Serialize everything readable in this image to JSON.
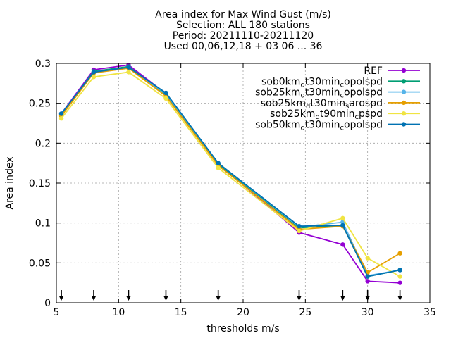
{
  "chart_data": {
    "type": "line",
    "title_lines": [
      "Area index  for Max Wind Gust (m/s)",
      "Selection: ALL     180 stations",
      "Period: 20211110-20211120",
      "Used 00,06,12,18 + 03 06 ... 36"
    ],
    "xlabel": "thresholds m/s",
    "ylabel": "Area index",
    "xlim": [
      5,
      35
    ],
    "ylim": [
      0,
      0.3
    ],
    "xticks": [
      5,
      10,
      15,
      20,
      25,
      30,
      35
    ],
    "xtick_labels": [
      "5",
      "10",
      "15",
      "20",
      "25",
      "30",
      "35"
    ],
    "yticks": [
      0,
      0.05,
      0.1,
      0.15,
      0.2,
      0.25,
      0.3
    ],
    "ytick_labels": [
      "0",
      "0.05",
      "0.1",
      "0.15",
      "0.2",
      "0.25",
      "0.3"
    ],
    "grid": true,
    "legend_position": "top-right",
    "x": [
      5.4,
      8.0,
      10.8,
      13.8,
      18.0,
      24.5,
      28.0,
      30.0,
      32.6
    ],
    "arrow_x": [
      5.4,
      8.0,
      10.8,
      13.8,
      18.0,
      24.5,
      28.0,
      30.0,
      32.6
    ],
    "series": [
      {
        "legend": [
          {
            "t": "REF"
          }
        ],
        "color": "#9400d3",
        "values": [
          0.237,
          0.292,
          0.298,
          0.262,
          0.174,
          0.088,
          0.073,
          0.027,
          0.025
        ]
      },
      {
        "legend": [
          {
            "t": "sob0km"
          },
          {
            "t": "d",
            "sub": true
          },
          {
            "t": "t30min"
          },
          {
            "t": "c",
            "sub": true
          },
          {
            "t": "opolspd"
          }
        ],
        "color": "#009e73",
        "values": [
          0.236,
          0.29,
          0.296,
          0.261,
          0.174,
          0.094,
          0.097,
          0.033,
          0.041
        ]
      },
      {
        "legend": [
          {
            "t": "sob25km"
          },
          {
            "t": "d",
            "sub": true
          },
          {
            "t": "t30min"
          },
          {
            "t": "c",
            "sub": true
          },
          {
            "t": "opolspd"
          }
        ],
        "color": "#56b4e9",
        "values": [
          0.237,
          0.289,
          0.295,
          0.262,
          0.175,
          0.095,
          0.101,
          0.034,
          0.041
        ]
      },
      {
        "legend": [
          {
            "t": "sob25km"
          },
          {
            "t": "d",
            "sub": true
          },
          {
            "t": "t30min"
          },
          {
            "t": "s",
            "sub": true
          },
          {
            "t": "arospd"
          }
        ],
        "color": "#e69f00",
        "values": [
          0.234,
          0.288,
          0.294,
          0.259,
          0.172,
          0.092,
          0.096,
          0.038,
          0.062
        ]
      },
      {
        "legend": [
          {
            "t": "sob25km"
          },
          {
            "t": "d",
            "sub": true
          },
          {
            "t": "t90min"
          },
          {
            "t": "c",
            "sub": true
          },
          {
            "t": "pspd"
          }
        ],
        "color": "#f0e442",
        "values": [
          0.231,
          0.283,
          0.289,
          0.256,
          0.169,
          0.09,
          0.106,
          0.056,
          0.033
        ]
      },
      {
        "legend": [
          {
            "t": "sob50km"
          },
          {
            "t": "d",
            "sub": true
          },
          {
            "t": "t30min"
          },
          {
            "t": "c",
            "sub": true
          },
          {
            "t": "opolspd"
          }
        ],
        "color": "#0072b2",
        "values": [
          0.237,
          0.289,
          0.295,
          0.263,
          0.175,
          0.096,
          0.097,
          0.033,
          0.041
        ]
      }
    ]
  }
}
